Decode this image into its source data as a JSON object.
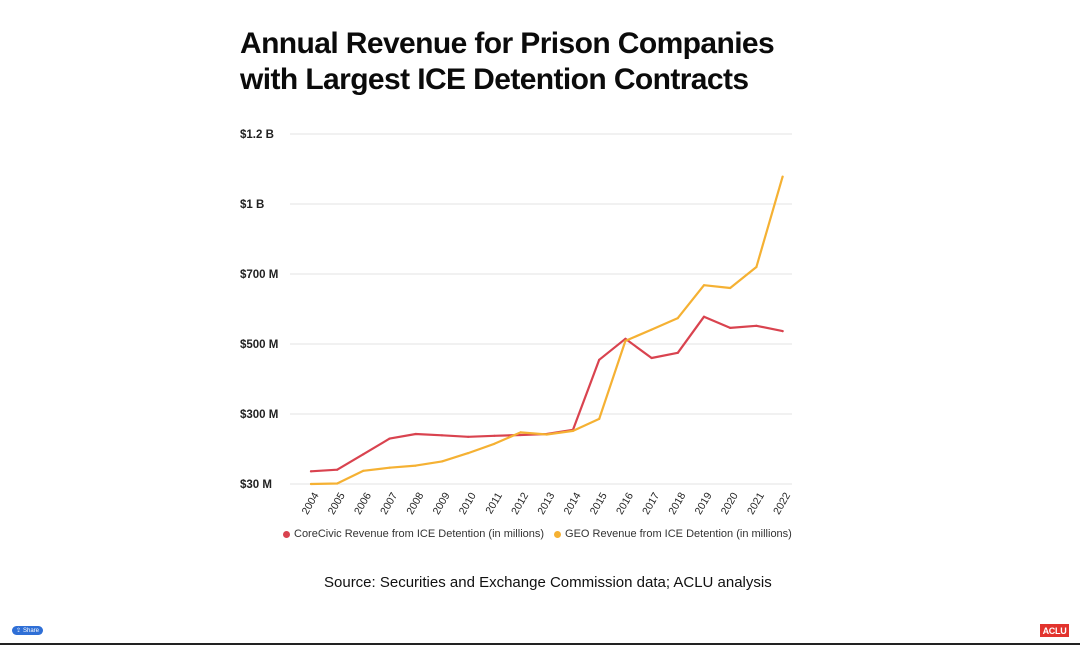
{
  "chart_data": {
    "type": "line",
    "title": [
      "Annual Revenue for Prison Companies",
      "with Largest ICE Detention Contracts"
    ],
    "y_tick_labels": [
      "$30 M",
      "$300 M",
      "$500 M",
      "$700 M",
      "$1 B",
      "$1.2 B"
    ],
    "categories": [
      "2004",
      "2005",
      "2006",
      "2007",
      "2008",
      "2009",
      "2010",
      "2011",
      "2012",
      "2013",
      "2014",
      "2015",
      "2016",
      "2017",
      "2018",
      "2019",
      "2020",
      "2021",
      "2022"
    ],
    "series": [
      {
        "name": "CoreCivic Revenue from ICE Detention (in millions)",
        "color": "#d9434f",
        "values": [
          79,
          85,
          145,
          205,
          223,
          218,
          212,
          216,
          219,
          223,
          239,
          455,
          515,
          460,
          475,
          578,
          546,
          552,
          537
        ]
      },
      {
        "name": "GEO Revenue from ICE Detention (in millions)",
        "color": "#f5b133",
        "values": [
          30,
          32,
          81,
          93,
          101,
          117,
          149,
          185,
          229,
          221,
          235,
          281,
          509,
          541,
          574,
          668,
          660,
          730,
          1078
        ]
      }
    ],
    "ylim": [
      30,
      1200
    ],
    "grid": true,
    "legend_position": "bottom"
  },
  "source": "Source: Securities and Exchange Commission data; ACLU analysis",
  "share_label": "Share",
  "logo_text": "ACLU"
}
